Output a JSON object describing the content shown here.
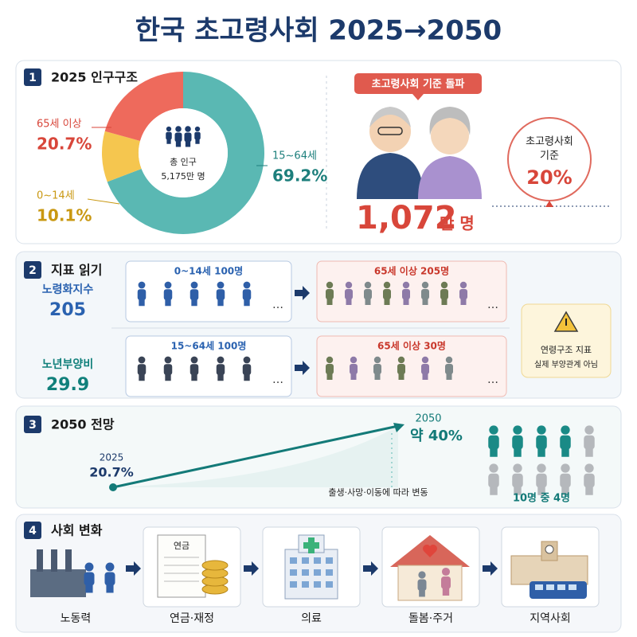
{
  "title": "한국 초고령사회 2025→2050",
  "section1": {
    "number": "1",
    "heading": "2025 인구구조",
    "donut": {
      "type": "pie",
      "categories": [
        "15~64세",
        "0~14세",
        "65세 이상"
      ],
      "values": [
        69.2,
        10.1,
        20.7
      ],
      "value_labels": [
        "69.2%",
        "10.1%",
        "20.7%"
      ],
      "colors": [
        "#5ab8b3",
        "#f5c64f",
        "#ee6a5c"
      ],
      "center_label": "총 인구",
      "center_value": "5,175만 명"
    },
    "badge": "초고령사회 기준 돌파",
    "elderly_count": "1,072",
    "elderly_unit": "만 명",
    "threshold_label_1": "초고령사회",
    "threshold_label_2": "기준",
    "threshold_value": "20%"
  },
  "section2": {
    "number": "2",
    "heading": "지표 읽기",
    "rows": [
      {
        "label": "노령화지수",
        "value": "205",
        "left_caption": "0~14세 100명",
        "right_caption": "65세 이상 205명"
      },
      {
        "label": "노년부양비",
        "value": "29.9",
        "left_caption": "15~64세 100명",
        "right_caption": "65세 이상 30명"
      }
    ],
    "note_1": "연령구조 지표",
    "note_2": "실제 부양관계 아님"
  },
  "section3": {
    "number": "3",
    "heading": "2050 전망",
    "chart_data": {
      "type": "line",
      "x": [
        "2025",
        "2050"
      ],
      "values": [
        20.7,
        40
      ],
      "value_labels": [
        "20.7%",
        "약 40%"
      ],
      "color": "#137a78"
    },
    "note": "출생·사망·이동에 따라 변동",
    "people_total": 10,
    "people_highlighted": 4,
    "people_caption": "10명 중 4명"
  },
  "section4": {
    "number": "4",
    "heading": "사회 변화",
    "pension_doc": "연금",
    "items": [
      "노동력",
      "연금·재정",
      "의료",
      "돌봄·주거",
      "지역사회"
    ]
  }
}
